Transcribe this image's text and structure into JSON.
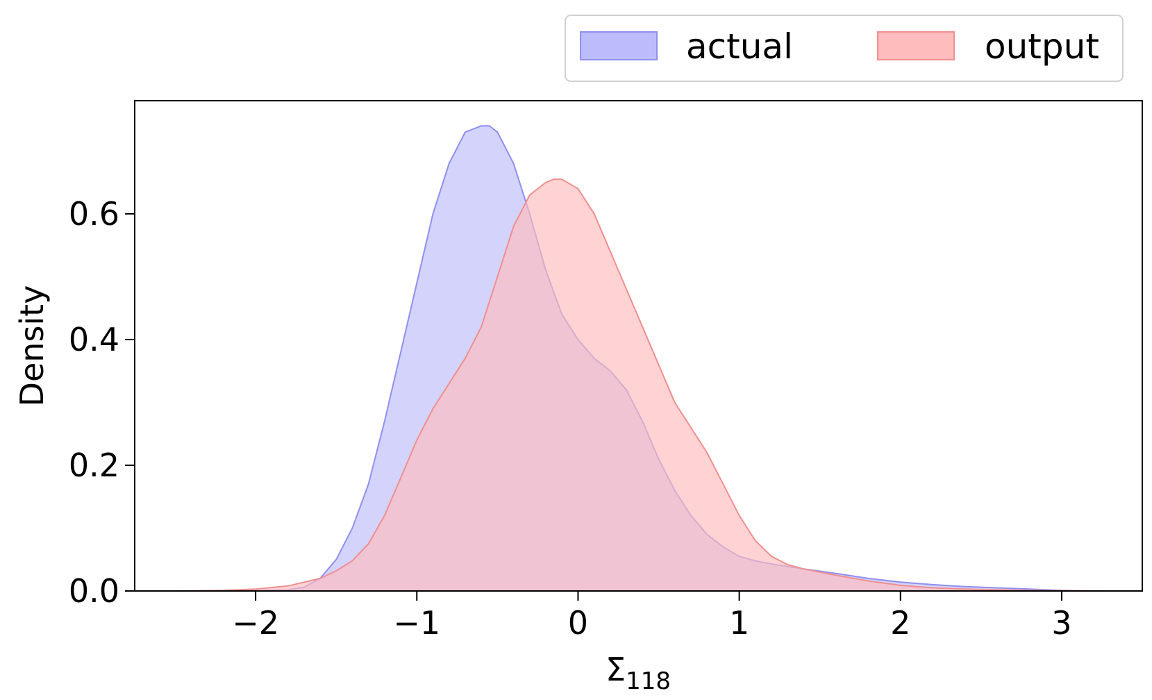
{
  "chart_data": {
    "type": "area",
    "xlabel": "Σ",
    "xlabel_subscript": "118",
    "ylabel": "Density",
    "xlim": [
      -2.75,
      3.5
    ],
    "ylim": [
      0,
      0.78
    ],
    "xticks": [
      -2,
      -1,
      0,
      1,
      2,
      3
    ],
    "xtick_labels": [
      "−2",
      "−1",
      "0",
      "1",
      "2",
      "3"
    ],
    "yticks": [
      0.0,
      0.2,
      0.4,
      0.6
    ],
    "ytick_labels": [
      "0.0",
      "0.2",
      "0.4",
      "0.6"
    ],
    "grid": false,
    "legend_position": "top-right, above plot",
    "series": [
      {
        "name": "actual",
        "fill_color": "#bcbcfb",
        "line_color": "#8f8ff0",
        "x": [
          -2.5,
          -2.0,
          -1.8,
          -1.7,
          -1.6,
          -1.5,
          -1.4,
          -1.3,
          -1.2,
          -1.1,
          -1.0,
          -0.9,
          -0.8,
          -0.7,
          -0.6,
          -0.55,
          -0.5,
          -0.4,
          -0.3,
          -0.2,
          -0.1,
          0.0,
          0.1,
          0.2,
          0.3,
          0.4,
          0.5,
          0.6,
          0.7,
          0.8,
          0.9,
          1.0,
          1.1,
          1.2,
          1.4,
          1.6,
          1.8,
          2.0,
          2.2,
          2.4,
          2.6,
          2.8,
          3.0,
          3.2
        ],
        "values": [
          0.0,
          0.0005,
          0.002,
          0.006,
          0.02,
          0.05,
          0.1,
          0.17,
          0.27,
          0.38,
          0.49,
          0.6,
          0.68,
          0.73,
          0.74,
          0.74,
          0.73,
          0.68,
          0.6,
          0.51,
          0.44,
          0.4,
          0.37,
          0.35,
          0.32,
          0.27,
          0.21,
          0.16,
          0.12,
          0.09,
          0.07,
          0.055,
          0.048,
          0.043,
          0.035,
          0.028,
          0.02,
          0.014,
          0.01,
          0.007,
          0.005,
          0.003,
          0.001,
          0.0
        ]
      },
      {
        "name": "output",
        "fill_color": "#ffbcbc",
        "line_color": "#f08f8f",
        "x": [
          -2.5,
          -2.2,
          -2.0,
          -1.8,
          -1.6,
          -1.5,
          -1.4,
          -1.3,
          -1.2,
          -1.1,
          -1.0,
          -0.9,
          -0.8,
          -0.7,
          -0.6,
          -0.5,
          -0.4,
          -0.3,
          -0.2,
          -0.15,
          -0.1,
          0.0,
          0.1,
          0.2,
          0.3,
          0.4,
          0.5,
          0.6,
          0.7,
          0.8,
          0.9,
          1.0,
          1.1,
          1.2,
          1.3,
          1.4,
          1.6,
          1.8,
          2.0,
          2.2,
          2.4,
          2.6,
          2.8,
          3.0,
          3.25
        ],
        "values": [
          0.0,
          0.001,
          0.003,
          0.008,
          0.02,
          0.032,
          0.048,
          0.075,
          0.12,
          0.18,
          0.24,
          0.29,
          0.33,
          0.37,
          0.42,
          0.5,
          0.58,
          0.63,
          0.65,
          0.655,
          0.655,
          0.64,
          0.6,
          0.54,
          0.48,
          0.42,
          0.36,
          0.3,
          0.26,
          0.22,
          0.17,
          0.12,
          0.08,
          0.055,
          0.042,
          0.035,
          0.025,
          0.016,
          0.009,
          0.005,
          0.003,
          0.002,
          0.001,
          0.0005,
          0.0
        ]
      }
    ]
  }
}
